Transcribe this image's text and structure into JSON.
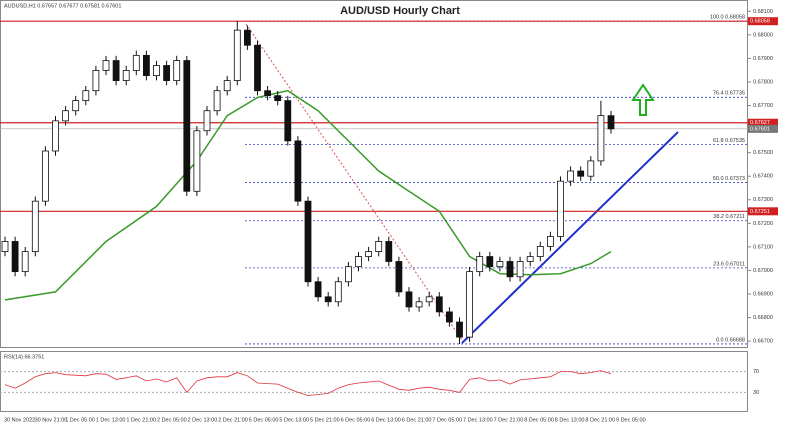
{
  "chart_data": {
    "type": "candlestick",
    "title": "AUD/USD Hourly Chart",
    "header": "AUDUSD,H1  0.67657 0.67677 0.67581 0.67601",
    "open": [
      0.6708,
      0.67123,
      0.66995,
      0.6708,
      0.67294,
      0.67507,
      0.67635,
      0.67678,
      0.67721,
      0.67763,
      0.67849,
      0.67891,
      0.67806,
      0.67849,
      0.67913,
      0.67827,
      0.6787,
      0.67806,
      0.67891,
      0.67336,
      0.67593,
      0.67678,
      0.67763,
      0.67806,
      0.6802,
      0.67956,
      0.67763,
      0.67742,
      0.67721,
      0.6755,
      0.67294,
      0.66952,
      0.66888,
      0.66867,
      0.66952,
      0.67016,
      0.67059,
      0.6708,
      0.67123,
      0.67038,
      0.66909,
      0.66845,
      0.66867,
      0.66888,
      0.66824,
      0.66781,
      0.66717,
      0.66995,
      0.67059,
      0.67016,
      0.67038,
      0.66973,
      0.67038,
      0.67059,
      0.67102,
      0.67144,
      0.67379,
      0.67422,
      0.674,
      0.67465,
      0.67657
    ],
    "high": [
      0.67143,
      0.67143,
      0.671,
      0.67314,
      0.67527,
      0.67655,
      0.67698,
      0.67741,
      0.67783,
      0.67869,
      0.67911,
      0.67911,
      0.67869,
      0.67933,
      0.67933,
      0.6789,
      0.6789,
      0.67911,
      0.67911,
      0.67613,
      0.67698,
      0.67783,
      0.67826,
      0.68058,
      0.6804,
      0.67976,
      0.67783,
      0.67762,
      0.67741,
      0.6757,
      0.67314,
      0.66972,
      0.66908,
      0.66972,
      0.67036,
      0.67079,
      0.671,
      0.67143,
      0.67143,
      0.67058,
      0.66929,
      0.66887,
      0.66908,
      0.66908,
      0.66844,
      0.66801,
      0.67015,
      0.67079,
      0.67079,
      0.67058,
      0.67058,
      0.67058,
      0.67079,
      0.67122,
      0.67164,
      0.67399,
      0.67442,
      0.67442,
      0.67485,
      0.6772,
      0.67677
    ],
    "low": [
      0.6706,
      0.66975,
      0.66975,
      0.6706,
      0.67274,
      0.67487,
      0.67615,
      0.67658,
      0.67701,
      0.67743,
      0.67829,
      0.67786,
      0.67786,
      0.67829,
      0.67807,
      0.67807,
      0.67786,
      0.67786,
      0.67316,
      0.67316,
      0.67573,
      0.67658,
      0.67743,
      0.67786,
      0.67936,
      0.67743,
      0.67722,
      0.67701,
      0.6753,
      0.67274,
      0.66932,
      0.66868,
      0.66847,
      0.66847,
      0.66932,
      0.66996,
      0.67039,
      0.6706,
      0.67018,
      0.66889,
      0.66825,
      0.66825,
      0.66847,
      0.66804,
      0.66761,
      0.66688,
      0.66697,
      0.66975,
      0.66996,
      0.66996,
      0.66953,
      0.66953,
      0.67018,
      0.67039,
      0.67082,
      0.67124,
      0.67359,
      0.6738,
      0.6738,
      0.67445,
      0.67581
    ],
    "close": [
      0.67123,
      0.66995,
      0.6708,
      0.67294,
      0.67507,
      0.67635,
      0.67678,
      0.67721,
      0.67763,
      0.67849,
      0.67891,
      0.67806,
      0.67849,
      0.67913,
      0.67827,
      0.6787,
      0.67806,
      0.67891,
      0.67336,
      0.67593,
      0.67678,
      0.67763,
      0.67806,
      0.6802,
      0.67956,
      0.67763,
      0.67742,
      0.67721,
      0.6755,
      0.67294,
      0.66952,
      0.66888,
      0.66867,
      0.66952,
      0.67016,
      0.67059,
      0.6708,
      0.67123,
      0.67038,
      0.66909,
      0.66845,
      0.66867,
      0.66888,
      0.66824,
      0.66781,
      0.66717,
      0.66995,
      0.67059,
      0.67016,
      0.67038,
      0.66973,
      0.67038,
      0.67059,
      0.67102,
      0.67144,
      0.67379,
      0.67422,
      0.674,
      0.67465,
      0.67657,
      0.67601
    ],
    "ma": {
      "color": "#3a9a2a",
      "x": [
        0,
        5,
        10,
        15,
        19,
        22,
        25,
        28,
        31,
        34,
        37,
        40,
        43,
        46,
        49,
        52,
        55,
        58,
        60
      ],
      "values": [
        0.66875,
        0.66909,
        0.67123,
        0.67272,
        0.67465,
        0.67657,
        0.67734,
        0.67763,
        0.67678,
        0.6755,
        0.67422,
        0.67336,
        0.67251,
        0.67059,
        0.66986,
        0.66982,
        0.66986,
        0.67029,
        0.6708
      ]
    },
    "ylim": [
      0.66675,
      0.68148
    ],
    "yticks": [
      {
        "value": 0.667,
        "label": "0.66700"
      },
      {
        "value": 0.668,
        "label": "0.66800"
      },
      {
        "value": 0.669,
        "label": "0.66900"
      },
      {
        "value": 0.67,
        "label": "0.67000"
      },
      {
        "value": 0.671,
        "label": "0.67100"
      },
      {
        "value": 0.672,
        "label": "0.67200"
      },
      {
        "value": 0.673,
        "label": "0.67300"
      },
      {
        "value": 0.674,
        "label": "0.67400"
      },
      {
        "value": 0.675,
        "label": "0.67500"
      },
      {
        "value": 0.676,
        "label": "0.67600"
      },
      {
        "value": 0.677,
        "label": "0.67700"
      },
      {
        "value": 0.678,
        "label": "0.67800"
      },
      {
        "value": 0.679,
        "label": "0.67900"
      },
      {
        "value": 0.68,
        "label": "0.68000"
      },
      {
        "value": 0.681,
        "label": "0.68100"
      }
    ],
    "levels": [
      0.68058,
      0.67627,
      0.67251
    ],
    "current_price": 0.67601,
    "fib": {
      "values": [
        0.68058,
        0.67735,
        0.67535,
        0.67373,
        0.67211,
        0.67011,
        0.66688
      ],
      "labels": [
        "100.0 0.68058",
        "76.4 0.67735",
        "61.8 0.67535",
        "50.0 0.67373",
        "38.2 0.67211",
        "23.6 0.67011",
        "0.0 0.66688"
      ]
    },
    "x_labels": [
      "30 Nov 2022",
      "30 Nov 21:00",
      "1 Dec 05:00",
      "1 Dec 13:00",
      "1 Dec 21:00",
      "2 Dec 05:00",
      "2 Dec 13:00",
      "2 Dec 21:00",
      "5 Dec 05:00",
      "5 Dec 13:00",
      "5 Dec 21:00",
      "6 Dec 05:00",
      "6 Dec 13:00",
      "6 Dec 21:00",
      "7 Dec 05:00",
      "7 Dec 13:00",
      "7 Dec 21:00",
      "8 Dec 05:00",
      "8 Dec 13:00",
      "8 Dec 21:00",
      "9 Dec 05:00"
    ],
    "rsi": {
      "title": "RSI(14) 66.3751",
      "color": "#e0303a",
      "ylim": [
        0,
        100
      ],
      "yticks": [
        30,
        70
      ],
      "values": [
        45,
        38,
        48,
        60,
        66,
        68,
        64,
        63,
        62,
        66,
        65,
        55,
        58,
        62,
        52,
        56,
        50,
        58,
        30,
        52,
        58,
        60,
        60,
        68,
        62,
        48,
        47,
        46,
        38,
        30,
        24,
        26,
        28,
        38,
        45,
        48,
        50,
        52,
        44,
        36,
        34,
        38,
        40,
        36,
        34,
        30,
        55,
        58,
        52,
        54,
        46,
        54,
        56,
        58,
        60,
        70,
        70,
        66,
        68,
        72,
        66
      ]
    }
  }
}
